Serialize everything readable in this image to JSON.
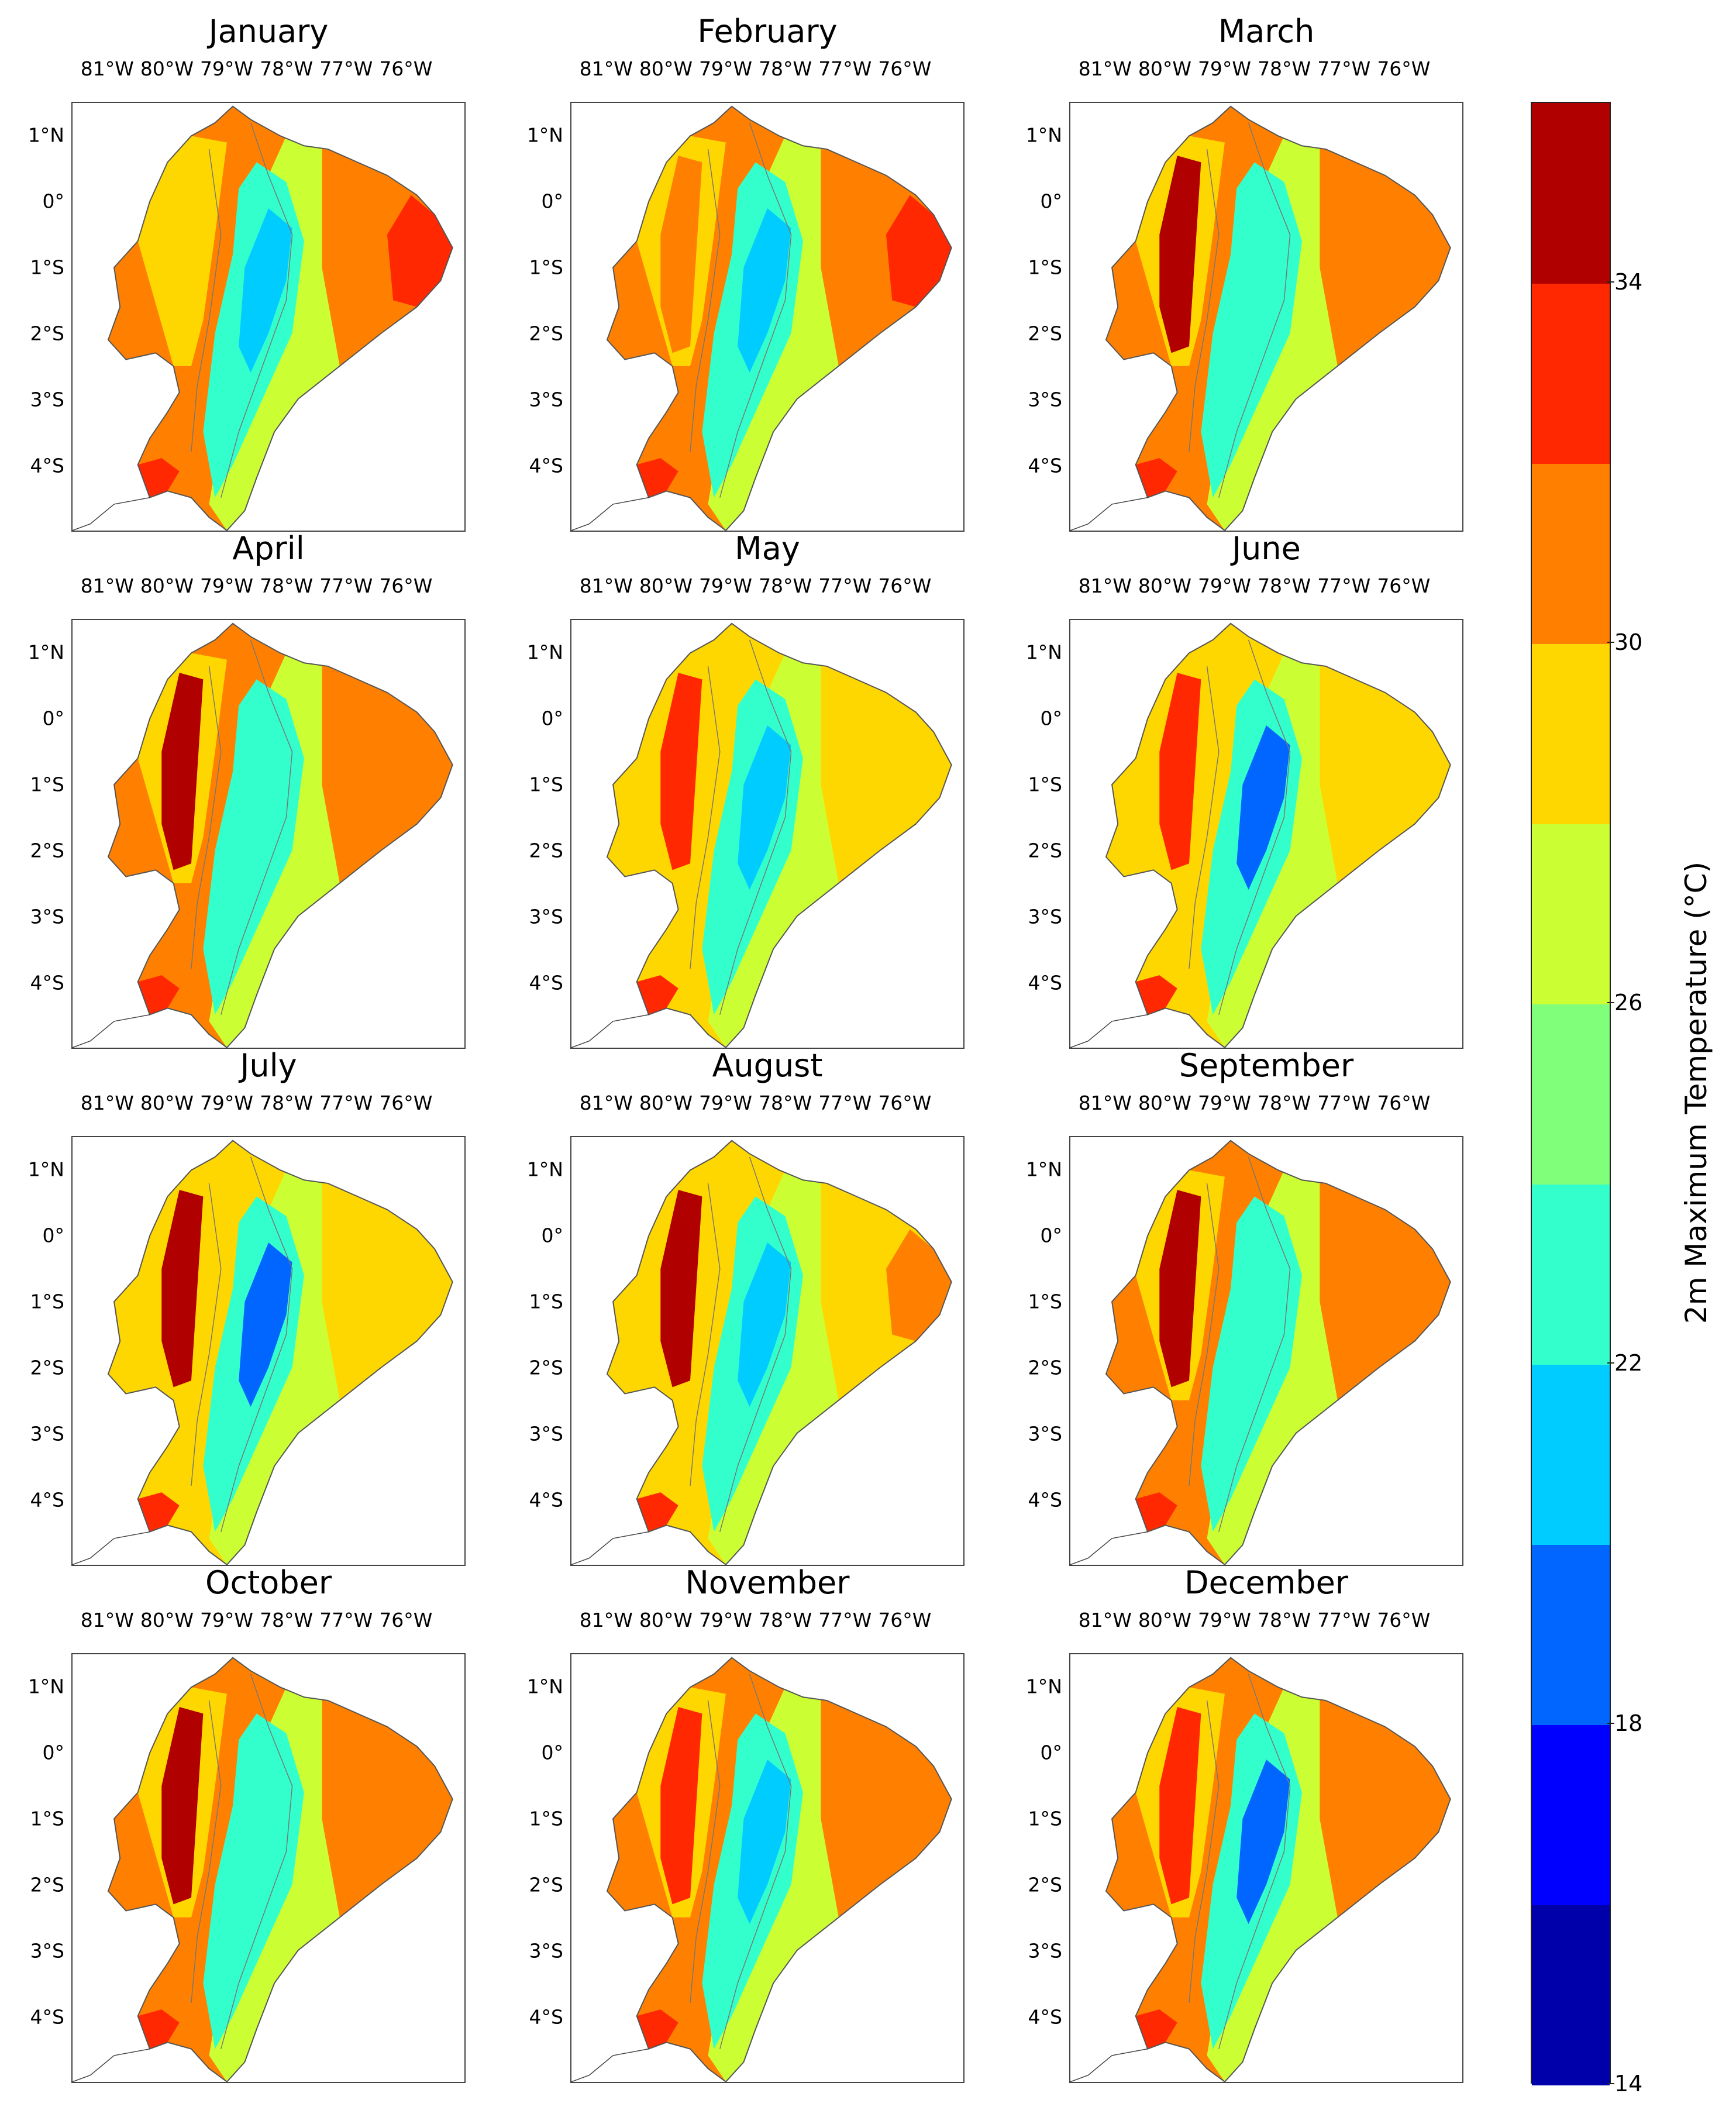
{
  "figure": {
    "colorbar": {
      "label": "2m Maximum Temperature (°C)",
      "ticks": [
        "14",
        "18",
        "22",
        "26",
        "30",
        "34"
      ],
      "levels": [
        14,
        16,
        18,
        20,
        22,
        24,
        26,
        28,
        30,
        32,
        34,
        36
      ],
      "colors": [
        "#0000aa",
        "#0000ff",
        "#0066ff",
        "#00ccff",
        "#33ffcc",
        "#80ff7a",
        "#ccff33",
        "#ffd700",
        "#ff8000",
        "#ff2800",
        "#b00000"
      ]
    },
    "axes": {
      "lon_labels": [
        "81°W",
        "80°W",
        "79°W",
        "78°W",
        "77°W",
        "76°W"
      ],
      "lat_labels": [
        "1°N",
        "0°",
        "1°S",
        "2°S",
        "3°S",
        "4°S"
      ]
    },
    "panels": [
      {
        "month": "January",
        "coast_level": 29,
        "east_level": 33,
        "core_level": 21.5,
        "amazon_level": 31
      },
      {
        "month": "February",
        "coast_level": 31,
        "east_level": 33,
        "core_level": 21.5,
        "amazon_level": 31
      },
      {
        "month": "March",
        "coast_level": 35,
        "east_level": 31,
        "core_level": 22.5,
        "amazon_level": 31
      },
      {
        "month": "April",
        "coast_level": 35,
        "east_level": 31,
        "core_level": 22.5,
        "amazon_level": 31
      },
      {
        "month": "May",
        "coast_level": 33,
        "east_level": 29,
        "core_level": 21.5,
        "amazon_level": 29
      },
      {
        "month": "June",
        "coast_level": 33,
        "east_level": 29,
        "core_level": 19,
        "amazon_level": 29
      },
      {
        "month": "July",
        "coast_level": 35,
        "east_level": 29,
        "core_level": 19,
        "amazon_level": 29
      },
      {
        "month": "August",
        "coast_level": 35,
        "east_level": 31,
        "core_level": 21.5,
        "amazon_level": 29
      },
      {
        "month": "September",
        "coast_level": 35,
        "east_level": 31,
        "core_level": 22.5,
        "amazon_level": 31
      },
      {
        "month": "October",
        "coast_level": 35,
        "east_level": 31,
        "core_level": 22.5,
        "amazon_level": 31
      },
      {
        "month": "November",
        "coast_level": 33,
        "east_level": 31,
        "core_level": 21.5,
        "amazon_level": 31
      },
      {
        "month": "December",
        "coast_level": 33,
        "east_level": 31,
        "core_level": 19,
        "amazon_level": 31
      }
    ]
  }
}
